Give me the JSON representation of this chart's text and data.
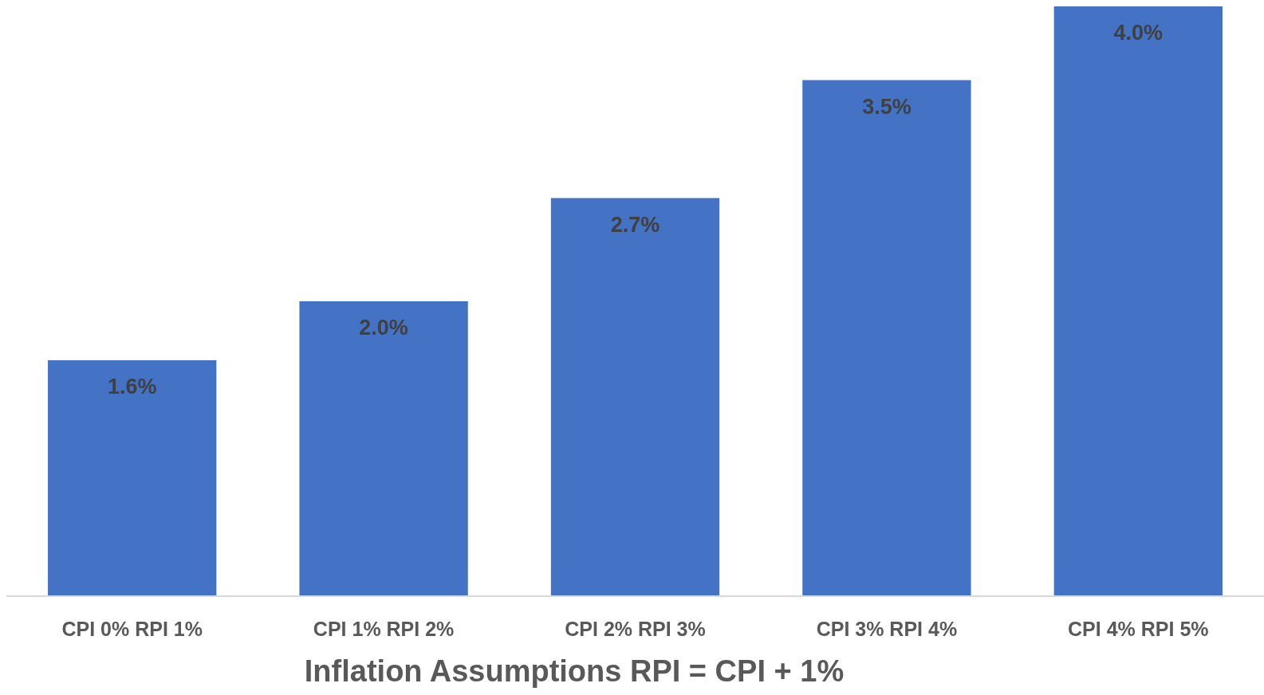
{
  "chart_data": {
    "type": "bar",
    "xlabel": "Inflation Assumptions RPI = CPI + 1%",
    "categories": [
      "CPI 0% RPI 1%",
      "CPI 1% RPI 2%",
      "CPI 2% RPI 3%",
      "CPI 3% RPI 4%",
      "CPI 4% RPI 5%"
    ],
    "values": [
      1.6,
      2.0,
      2.7,
      3.5,
      4.0
    ],
    "value_labels": [
      "1.6%",
      "2.0%",
      "2.7%",
      "3.5%",
      "4.0%"
    ],
    "color": "#4472c4"
  }
}
